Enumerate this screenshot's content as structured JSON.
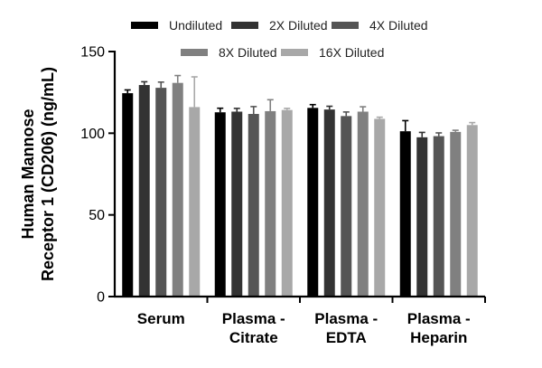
{
  "chart_data": {
    "type": "bar",
    "title": "",
    "xlabel": "",
    "ylabel": "Human Mannose Receptor 1 (CD206) (ng/mL)",
    "ylabel_lines": [
      "Human Mannose",
      "Receptor 1 (CD206) (ng/mL)"
    ],
    "ylim": [
      0,
      150
    ],
    "yticks": [
      0,
      50,
      100,
      150
    ],
    "grid": false,
    "legend_position": "top",
    "categories": [
      [
        "Serum"
      ],
      [
        "Plasma -",
        "Citrate"
      ],
      [
        "Plasma -",
        "EDTA"
      ],
      [
        "Plasma -",
        "Heparin"
      ]
    ],
    "series": [
      {
        "name": "Undiluted",
        "color": "#000000",
        "values": [
          124.5,
          112.8,
          115.5,
          101.2
        ],
        "errors": [
          2.0,
          2.5,
          2.0,
          6.5
        ]
      },
      {
        "name": "2X Diluted",
        "color": "#333333",
        "values": [
          129.5,
          113.2,
          114.5,
          97.5
        ],
        "errors": [
          2.0,
          2.0,
          2.0,
          3.0
        ]
      },
      {
        "name": "4X Diluted",
        "color": "#555555",
        "values": [
          127.8,
          111.8,
          110.5,
          98.2
        ],
        "errors": [
          3.5,
          4.5,
          2.5,
          2.0
        ]
      },
      {
        "name": "8X Diluted",
        "color": "#808080",
        "values": [
          130.8,
          113.5,
          113.2,
          100.8
        ],
        "errors": [
          4.5,
          7.0,
          3.0,
          1.0
        ]
      },
      {
        "name": "16X Diluted",
        "color": "#a8a8a8",
        "values": [
          116.0,
          114.2,
          108.8,
          105.0
        ],
        "errors": [
          18.5,
          1.0,
          1.0,
          1.5
        ]
      }
    ]
  }
}
